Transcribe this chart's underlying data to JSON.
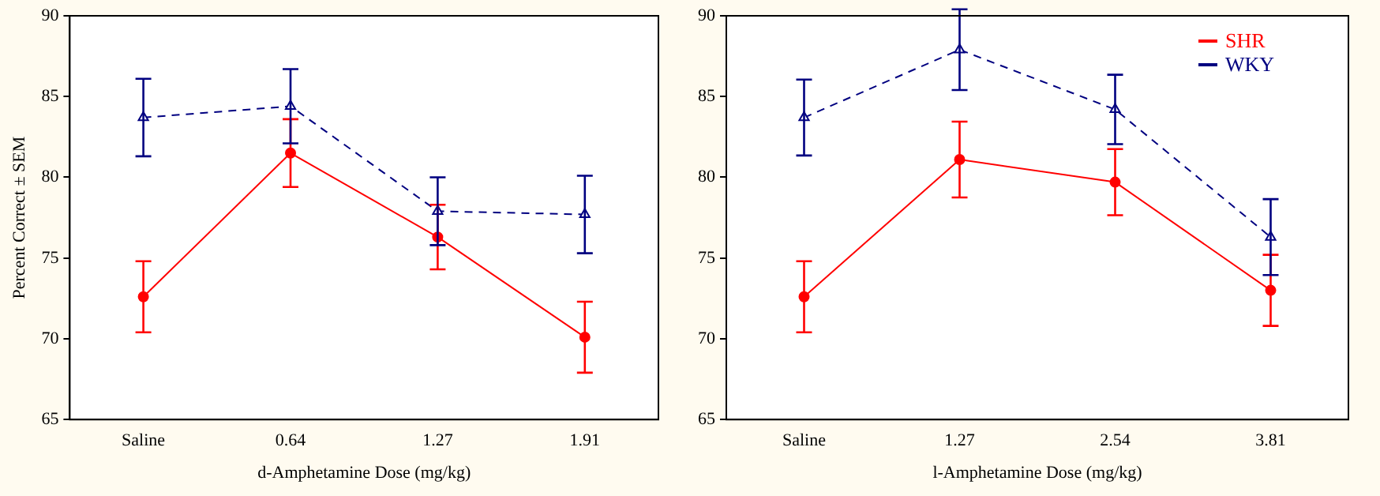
{
  "chart_data": [
    {
      "type": "line",
      "xlabel": "d-Amphetamine Dose (mg/kg)",
      "ylabel": "Percent Correct ± SEM",
      "categories": [
        "Saline",
        "0.64",
        "1.27",
        "1.91"
      ],
      "ylim": [
        65,
        90
      ],
      "yticks": [
        65,
        70,
        75,
        80,
        85,
        90
      ],
      "legend": false,
      "series": [
        {
          "color": "#ff0000",
          "marker": "circle",
          "line_style": "solid",
          "values": [
            72.6,
            81.5,
            76.3,
            70.1
          ],
          "errors": [
            2.2,
            2.1,
            2.0,
            2.2
          ]
        },
        {
          "color": "#000080",
          "marker": "triangle",
          "line_style": "dashed",
          "values": [
            83.7,
            84.4,
            77.9,
            77.7
          ],
          "errors": [
            2.4,
            2.3,
            2.1,
            2.4
          ]
        }
      ]
    },
    {
      "type": "line",
      "xlabel": "l-Amphetamine Dose (mg/kg)",
      "categories": [
        "Saline",
        "1.27",
        "2.54",
        "3.81"
      ],
      "ylim": [
        65,
        90
      ],
      "yticks": [
        65,
        70,
        75,
        80,
        85,
        90
      ],
      "legend": "top right",
      "series": [
        {
          "name": "SHR",
          "color": "#ff0000",
          "marker": "circle",
          "line_style": "solid",
          "values": [
            72.6,
            81.1,
            79.7,
            73.0
          ],
          "errors": [
            2.2,
            2.35,
            2.05,
            2.2
          ]
        },
        {
          "name": "WKY",
          "color": "#000080",
          "marker": "triangle",
          "line_style": "dashed",
          "values": [
            83.7,
            87.9,
            84.2,
            76.3
          ],
          "errors": [
            2.35,
            2.5,
            2.15,
            2.35
          ]
        }
      ]
    }
  ]
}
